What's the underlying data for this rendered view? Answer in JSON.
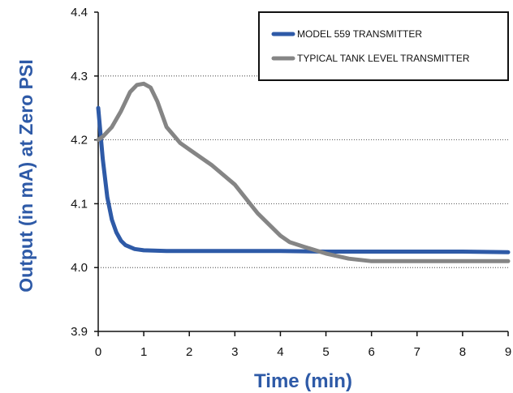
{
  "chart_data": {
    "type": "line",
    "xlabel": "Time (min)",
    "ylabel": "Output (in mA) at Zero PSI",
    "xlim": [
      0,
      9
    ],
    "ylim": [
      3.9,
      4.4
    ],
    "x_ticks": [
      "0",
      "1",
      "2",
      "3",
      "4",
      "5",
      "6",
      "7",
      "8",
      "9"
    ],
    "y_ticks": [
      "3.9",
      "4.0",
      "4.1",
      "4.2",
      "4.3",
      "4.4"
    ],
    "grid": "horizontal dotted",
    "legend_position": "top-right",
    "series": [
      {
        "name": "MODEL 559 TRANSMITTER",
        "color": "#2e5aa7",
        "points": [
          [
            0,
            4.25
          ],
          [
            0.1,
            4.17
          ],
          [
            0.2,
            4.11
          ],
          [
            0.3,
            4.075
          ],
          [
            0.4,
            4.055
          ],
          [
            0.5,
            4.042
          ],
          [
            0.6,
            4.035
          ],
          [
            0.8,
            4.029
          ],
          [
            1.0,
            4.027
          ],
          [
            1.5,
            4.026
          ],
          [
            2,
            4.026
          ],
          [
            3,
            4.026
          ],
          [
            4,
            4.026
          ],
          [
            5,
            4.025
          ],
          [
            6,
            4.025
          ],
          [
            7,
            4.025
          ],
          [
            8,
            4.025
          ],
          [
            9,
            4.024
          ]
        ]
      },
      {
        "name": "TYPICAL TANK LEVEL TRANSMITTER",
        "color": "#858585",
        "points": [
          [
            0,
            4.2
          ],
          [
            0.1,
            4.205
          ],
          [
            0.3,
            4.22
          ],
          [
            0.5,
            4.245
          ],
          [
            0.7,
            4.275
          ],
          [
            0.85,
            4.286
          ],
          [
            1.0,
            4.288
          ],
          [
            1.15,
            4.282
          ],
          [
            1.3,
            4.26
          ],
          [
            1.5,
            4.22
          ],
          [
            1.8,
            4.195
          ],
          [
            2.0,
            4.185
          ],
          [
            2.5,
            4.16
          ],
          [
            3.0,
            4.13
          ],
          [
            3.5,
            4.085
          ],
          [
            4.0,
            4.05
          ],
          [
            4.2,
            4.04
          ],
          [
            4.5,
            4.033
          ],
          [
            5.0,
            4.022
          ],
          [
            5.5,
            4.014
          ],
          [
            6.0,
            4.01
          ],
          [
            7,
            4.01
          ],
          [
            8,
            4.01
          ],
          [
            9,
            4.01
          ]
        ]
      }
    ]
  }
}
